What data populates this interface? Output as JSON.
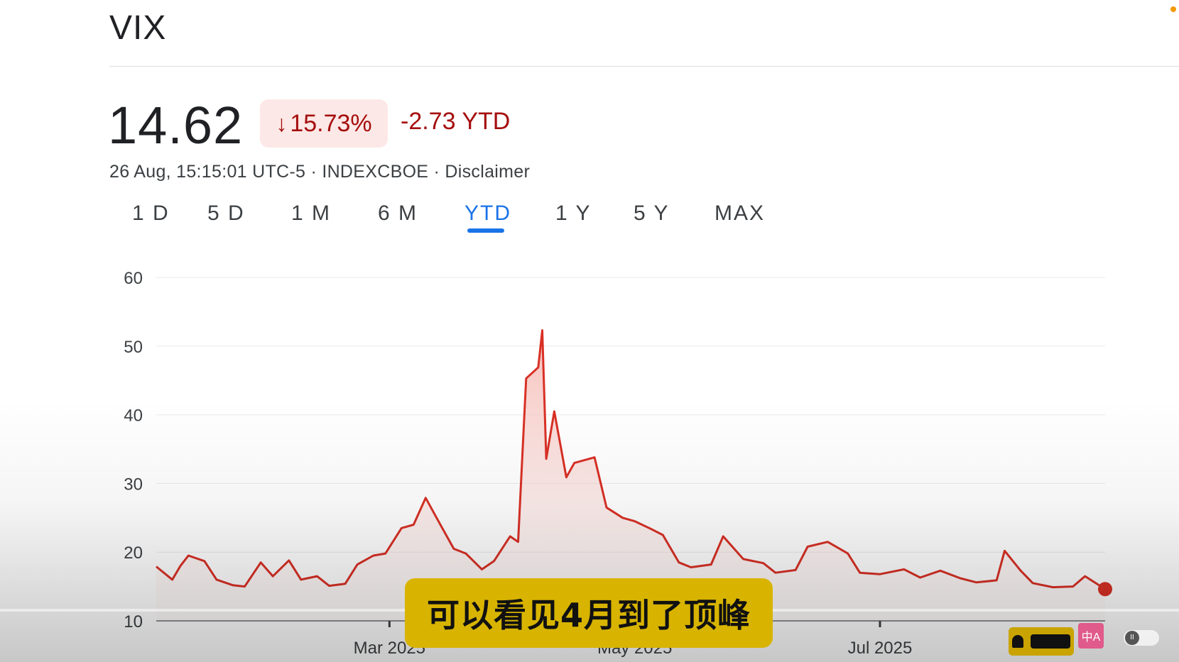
{
  "header": {
    "ticker": "VIX",
    "price": "14.62",
    "change_arrow": "↓",
    "change_percent": "15.73%",
    "change_ytd": "-2.73 YTD",
    "meta": "26 Aug, 15:15:01 UTC-5 · INDEXCBOE · Disclaimer"
  },
  "tabs": [
    {
      "label": "1 D",
      "active": false
    },
    {
      "label": "5 D",
      "active": false
    },
    {
      "label": "1 M",
      "active": false
    },
    {
      "label": "6 M",
      "active": false
    },
    {
      "label": "YTD",
      "active": true
    },
    {
      "label": "1 Y",
      "active": false
    },
    {
      "label": "5 Y",
      "active": false
    },
    {
      "label": "MAX",
      "active": false
    }
  ],
  "colors": {
    "line": "#d93025",
    "area_top": "#f4b7b1",
    "accent": "#1a73e8",
    "negative": "#a50e0e",
    "negative_bg": "#fce8e6",
    "subtitle_bg": "#d8b400"
  },
  "chart_data": {
    "type": "area",
    "title": "",
    "xlabel": "",
    "ylabel": "",
    "ylim": [
      10,
      60
    ],
    "yticks": [
      "60",
      "50",
      "40",
      "30",
      "20",
      "10"
    ],
    "xticks": [
      {
        "label": "Mar 2025",
        "date": "2025-03-01"
      },
      {
        "label": "May 2025",
        "date": "2025-05-01"
      },
      {
        "label": "Jul 2025",
        "date": "2025-07-01"
      }
    ],
    "grid": true,
    "last_marker": true,
    "series": [
      {
        "x": [
          "2025-01-02",
          "2025-01-06",
          "2025-01-08",
          "2025-01-10",
          "2025-01-14",
          "2025-01-17",
          "2025-01-21",
          "2025-01-24",
          "2025-01-28",
          "2025-01-31",
          "2025-02-04",
          "2025-02-07",
          "2025-02-11",
          "2025-02-14",
          "2025-02-18",
          "2025-02-21",
          "2025-02-25",
          "2025-02-28",
          "2025-03-04",
          "2025-03-07",
          "2025-03-10",
          "2025-03-13",
          "2025-03-17",
          "2025-03-20",
          "2025-03-24",
          "2025-03-27",
          "2025-03-31",
          "2025-04-02",
          "2025-04-04",
          "2025-04-07",
          "2025-04-08",
          "2025-04-09",
          "2025-04-11",
          "2025-04-14",
          "2025-04-16",
          "2025-04-21",
          "2025-04-24",
          "2025-04-28",
          "2025-05-01",
          "2025-05-05",
          "2025-05-08",
          "2025-05-12",
          "2025-05-15",
          "2025-05-20",
          "2025-05-23",
          "2025-05-28",
          "2025-06-02",
          "2025-06-05",
          "2025-06-10",
          "2025-06-13",
          "2025-06-18",
          "2025-06-23",
          "2025-06-26",
          "2025-07-01",
          "2025-07-07",
          "2025-07-11",
          "2025-07-16",
          "2025-07-21",
          "2025-07-25",
          "2025-07-30",
          "2025-08-01",
          "2025-08-05",
          "2025-08-08",
          "2025-08-13",
          "2025-08-18",
          "2025-08-21",
          "2025-08-26"
        ],
        "values": [
          17.9,
          16.0,
          18.0,
          19.5,
          18.7,
          16.0,
          15.2,
          15.0,
          18.5,
          16.5,
          18.8,
          16.0,
          16.5,
          15.1,
          15.4,
          18.2,
          19.5,
          19.8,
          23.5,
          24.0,
          27.9,
          24.7,
          20.5,
          19.8,
          17.5,
          18.7,
          22.3,
          21.5,
          45.3,
          46.9,
          52.3,
          33.6,
          40.5,
          30.9,
          33.0,
          33.8,
          26.5,
          25.0,
          24.5,
          23.4,
          22.5,
          18.5,
          17.8,
          18.2,
          22.3,
          19.0,
          18.4,
          17.0,
          17.4,
          20.8,
          21.5,
          19.8,
          17.0,
          16.8,
          17.5,
          16.3,
          17.3,
          16.2,
          15.6,
          15.9,
          20.2,
          17.3,
          15.5,
          14.9,
          15.0,
          16.5,
          14.62
        ]
      }
    ]
  },
  "subtitle": "可以看见4月到了顶峰",
  "icons": {
    "translate": "中A",
    "pause": "II"
  }
}
